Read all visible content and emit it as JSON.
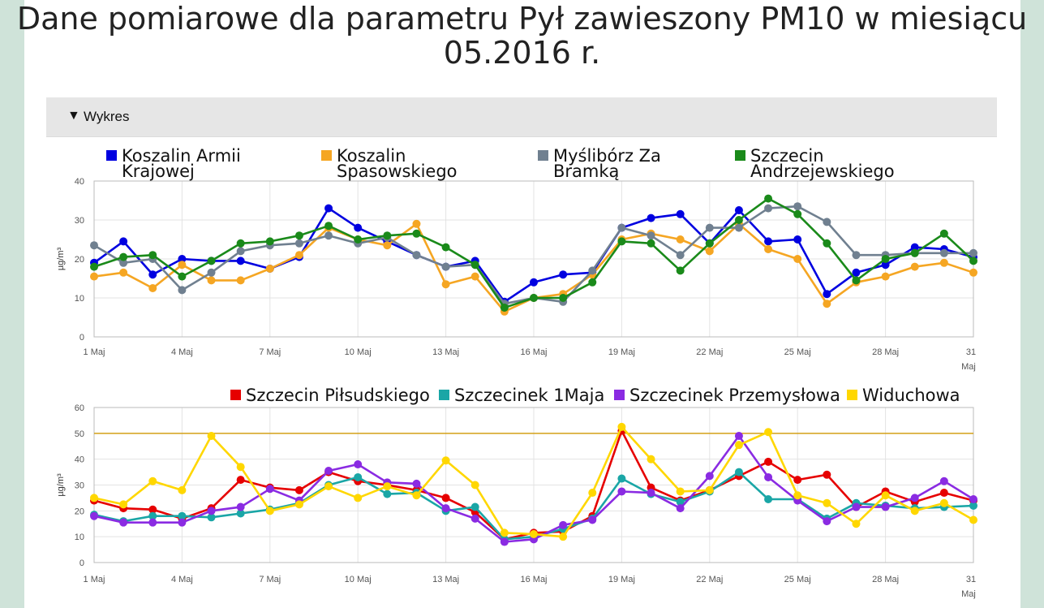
{
  "page": {
    "title": "Dane pomiarowe dla parametru Pył zawieszony PM10 w miesiącu 05.2016 r.",
    "panel_label": "Wykres"
  },
  "colors": {
    "koszalin_armii": "#0000e0",
    "koszalin_spasowskiego": "#f5a623",
    "mysliborz": "#708090",
    "szczecin_andrzejewskiego": "#1a8a1a",
    "szczecin_pilsudskiego": "#e60000",
    "szczecinek_1maja": "#1aa6a6",
    "szczecinek_przemyslowa": "#8a2be2",
    "widuchowa": "#ffd700",
    "threshold": "#d4a017"
  },
  "chart_data": [
    {
      "type": "line",
      "ylabel": "µg/m³",
      "ylim": [
        0,
        40
      ],
      "yticks": [
        0,
        10,
        20,
        30,
        40
      ],
      "x_tick_labels": [
        {
          "day": 1,
          "label": "1 Maj"
        },
        {
          "day": 4,
          "label": "4 Maj"
        },
        {
          "day": 7,
          "label": "7 Maj"
        },
        {
          "day": 10,
          "label": "10 Maj"
        },
        {
          "day": 13,
          "label": "13 Maj"
        },
        {
          "day": 16,
          "label": "16 Maj"
        },
        {
          "day": 19,
          "label": "19 Maj"
        },
        {
          "day": 22,
          "label": "22 Maj"
        },
        {
          "day": 25,
          "label": "25 Maj"
        },
        {
          "day": 28,
          "label": "28 Maj"
        },
        {
          "day": 31,
          "label": "31 Maj"
        }
      ],
      "legend_position": "top",
      "series": [
        {
          "name": "Koszalin Armii Krajowej",
          "color": "#0000e0",
          "values": [
            19,
            24.5,
            16,
            20,
            19.5,
            19.5,
            17.5,
            20.5,
            33,
            28,
            24.5,
            21,
            18,
            19.5,
            9,
            14,
            16,
            16.5,
            28,
            30.5,
            31.5,
            24,
            32.5,
            24.5,
            25,
            11,
            16.5,
            18.5,
            23,
            22.5,
            20.5
          ]
        },
        {
          "name": "Koszalin Spasowskiego",
          "color": "#f5a623",
          "values": [
            15.5,
            16.5,
            12.5,
            18.5,
            14.5,
            14.5,
            17.5,
            21,
            28,
            25,
            23.5,
            29,
            13.5,
            15.5,
            6.5,
            10,
            11,
            16,
            25,
            26.5,
            25,
            22,
            29,
            22.5,
            20,
            8.5,
            14,
            15.5,
            18,
            19,
            16.5
          ]
        },
        {
          "name": "Myślibórz Za Bramką",
          "color": "#708090",
          "values": [
            23.5,
            19,
            20,
            12,
            16.5,
            22,
            23.5,
            24,
            26,
            24,
            25.5,
            21,
            18,
            18.5,
            8.5,
            10,
            9,
            17,
            28,
            26,
            21,
            28,
            28,
            33,
            33.5,
            29.5,
            21,
            21,
            21.5,
            21.5,
            21.5
          ]
        },
        {
          "name": "Szczecin Andrzejewskiego",
          "color": "#1a8a1a",
          "values": [
            18,
            20.5,
            21,
            15.5,
            19.5,
            24,
            24.5,
            26,
            28.5,
            25,
            26,
            26.5,
            23,
            18.5,
            7.5,
            10,
            10,
            14,
            24.5,
            24,
            17,
            24,
            30,
            35.5,
            31.5,
            24,
            14.5,
            20,
            21.5,
            26.5,
            19.5
          ]
        }
      ]
    },
    {
      "type": "line",
      "ylabel": "µg/m³",
      "ylim": [
        0,
        60
      ],
      "yticks": [
        0,
        10,
        20,
        30,
        40,
        50,
        60
      ],
      "threshold": 50,
      "x_tick_labels": [
        {
          "day": 1,
          "label": "1 Maj"
        },
        {
          "day": 4,
          "label": "4 Maj"
        },
        {
          "day": 7,
          "label": "7 Maj"
        },
        {
          "day": 10,
          "label": "10 Maj"
        },
        {
          "day": 13,
          "label": "13 Maj"
        },
        {
          "day": 16,
          "label": "16 Maj"
        },
        {
          "day": 19,
          "label": "19 Maj"
        },
        {
          "day": 22,
          "label": "22 Maj"
        },
        {
          "day": 25,
          "label": "25 Maj"
        },
        {
          "day": 28,
          "label": "28 Maj"
        },
        {
          "day": 31,
          "label": "31 Maj"
        }
      ],
      "legend_position": "top",
      "series": [
        {
          "name": "Szczecin Piłsudskiego",
          "color": "#e60000",
          "values": [
            24,
            21,
            20.5,
            17,
            21,
            32,
            29,
            28,
            35,
            31.5,
            30,
            28,
            25,
            19.5,
            9,
            11.5,
            12,
            18,
            51,
            29,
            24,
            28,
            33.5,
            39,
            32,
            34,
            21.5,
            27.5,
            23.5,
            27,
            24
          ]
        },
        {
          "name": "Szczecinek 1Maja",
          "color": "#1aa6a6",
          "values": [
            18.5,
            16,
            18,
            18,
            17.5,
            19,
            20.5,
            23,
            30,
            33,
            26.5,
            27,
            20,
            21.5,
            9,
            10,
            13,
            17,
            32.5,
            26.5,
            23.5,
            27.5,
            35,
            24.5,
            24.5,
            17,
            23,
            22,
            21,
            21.5,
            22
          ]
        },
        {
          "name": "Szczecinek Przemysłowa",
          "color": "#8a2be2",
          "values": [
            18,
            15.5,
            15.5,
            15.5,
            20,
            21.5,
            28.5,
            24,
            35.5,
            38,
            31,
            30.5,
            21,
            17,
            8,
            9,
            14.5,
            16.5,
            27.5,
            27,
            21,
            33.5,
            49,
            33,
            24,
            16,
            21.5,
            21.5,
            25,
            31.5,
            24.5
          ]
        },
        {
          "name": "Widuchowa",
          "color": "#ffd700",
          "values": [
            25,
            22.5,
            31.5,
            28,
            49,
            37,
            20,
            22.5,
            29.5,
            25,
            29.5,
            26,
            39.5,
            30,
            11.5,
            11,
            10,
            27,
            52.5,
            40,
            27.5,
            28,
            45.5,
            50.5,
            26,
            23,
            15,
            26,
            20,
            23,
            16.5
          ]
        }
      ]
    }
  ]
}
